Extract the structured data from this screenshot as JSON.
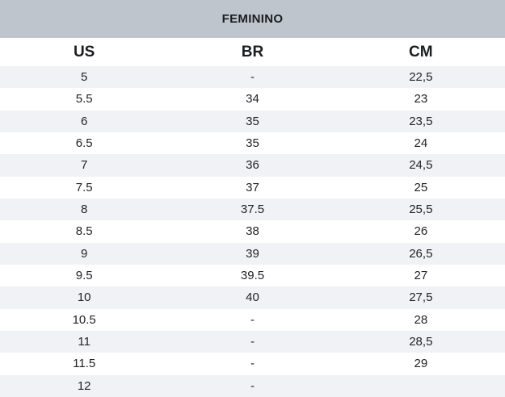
{
  "table": {
    "title": "FEMININO",
    "columns": [
      {
        "key": "us",
        "label": "US"
      },
      {
        "key": "br",
        "label": "BR"
      },
      {
        "key": "cm",
        "label": "CM"
      }
    ],
    "rows": [
      {
        "us": "5",
        "br": "-",
        "cm": "22,5"
      },
      {
        "us": "5.5",
        "br": "34",
        "cm": "23"
      },
      {
        "us": "6",
        "br": "35",
        "cm": "23,5"
      },
      {
        "us": "6.5",
        "br": "35",
        "cm": "24"
      },
      {
        "us": "7",
        "br": "36",
        "cm": "24,5"
      },
      {
        "us": "7.5",
        "br": "37",
        "cm": "25"
      },
      {
        "us": "8",
        "br": "37.5",
        "cm": "25,5"
      },
      {
        "us": "8.5",
        "br": "38",
        "cm": "26"
      },
      {
        "us": "9",
        "br": "39",
        "cm": "26,5"
      },
      {
        "us": "9.5",
        "br": "39.5",
        "cm": "27"
      },
      {
        "us": "10",
        "br": "40",
        "cm": "27,5"
      },
      {
        "us": "10.5",
        "br": "-",
        "cm": "28"
      },
      {
        "us": "11",
        "br": "-",
        "cm": "28,5"
      },
      {
        "us": "11.5",
        "br": "-",
        "cm": "29"
      },
      {
        "us": "12",
        "br": "-",
        "cm": ""
      }
    ],
    "colors": {
      "header_bg": "#bfc5cc",
      "stripe_bg": "#f0f2f6",
      "text": "#1c1d1f"
    }
  }
}
